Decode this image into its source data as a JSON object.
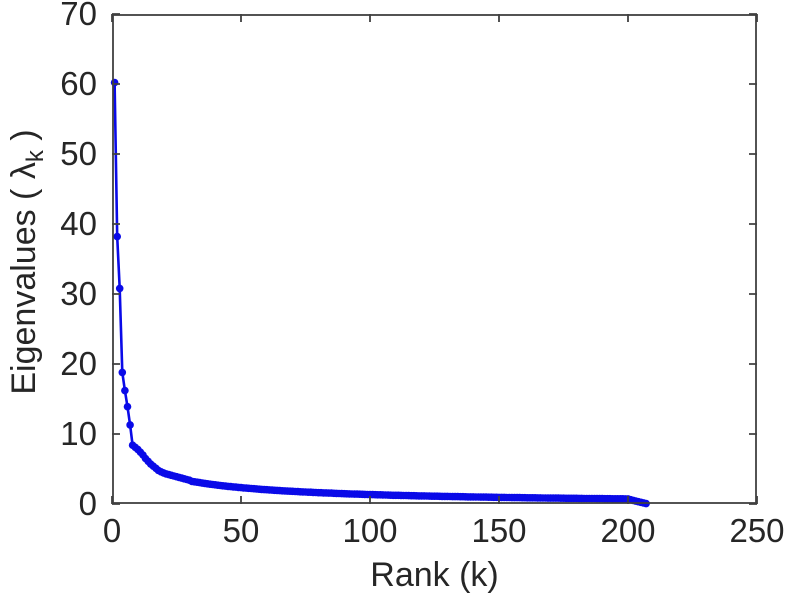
{
  "figure": {
    "title": "",
    "xlabel": "Rank (k)",
    "ylabel_prefix": "Eigenvalues ( ",
    "ylabel_lambda": "λ",
    "ylabel_sub": "k",
    "ylabel_suffix": " )",
    "background_color": "#ffffff",
    "axis_color": "#404040",
    "text_color": "#262626"
  },
  "chart_data": {
    "type": "line",
    "title": "",
    "xlabel": "Rank (k)",
    "ylabel": "Eigenvalues ( λ_k )",
    "xlim": [
      0,
      250
    ],
    "ylim": [
      0,
      70
    ],
    "xticks": [
      0,
      50,
      100,
      150,
      200,
      250
    ],
    "yticks": [
      0,
      10,
      20,
      30,
      40,
      50,
      60,
      70
    ],
    "grid": false,
    "legend": null,
    "box": true,
    "tick_direction": "in",
    "line_color": "#0a0ae8",
    "marker": "filled-circle",
    "series": [
      {
        "name": "eigenvalues",
        "x_start": 1,
        "x_step": 1,
        "values": [
          60.2,
          38.2,
          30.8,
          18.8,
          16.2,
          13.9,
          11.3,
          8.4,
          8.1,
          7.8,
          7.4,
          7.0,
          6.5,
          6.1,
          5.7,
          5.4,
          5.1,
          4.8,
          4.6,
          4.45,
          4.3,
          4.2,
          4.1,
          4.0,
          3.9,
          3.8,
          3.7,
          3.6,
          3.5,
          3.4,
          3.23,
          3.17,
          3.11,
          3.05,
          2.99,
          2.94,
          2.88,
          2.83,
          2.78,
          2.74,
          2.69,
          2.64,
          2.6,
          2.56,
          2.52,
          2.48,
          2.44,
          2.41,
          2.37,
          2.34,
          2.3,
          2.27,
          2.24,
          2.21,
          2.18,
          2.15,
          2.12,
          2.09,
          2.06,
          2.04,
          2.01,
          1.99,
          1.96,
          1.94,
          1.92,
          1.89,
          1.87,
          1.85,
          1.83,
          1.81,
          1.79,
          1.77,
          1.75,
          1.73,
          1.71,
          1.69,
          1.68,
          1.66,
          1.64,
          1.62,
          1.61,
          1.59,
          1.58,
          1.56,
          1.55,
          1.53,
          1.52,
          1.5,
          1.49,
          1.47,
          1.46,
          1.45,
          1.43,
          1.42,
          1.41,
          1.4,
          1.39,
          1.37,
          1.36,
          1.35,
          1.34,
          1.33,
          1.32,
          1.31,
          1.3,
          1.29,
          1.27,
          1.26,
          1.25,
          1.25,
          1.24,
          1.23,
          1.22,
          1.21,
          1.2,
          1.19,
          1.18,
          1.17,
          1.16,
          1.16,
          1.15,
          1.14,
          1.13,
          1.12,
          1.11,
          1.11,
          1.1,
          1.09,
          1.08,
          1.08,
          1.07,
          1.06,
          1.06,
          1.05,
          1.04,
          1.04,
          1.03,
          1.02,
          1.02,
          1.01,
          1.0,
          1.0,
          0.99,
          0.98,
          0.98,
          0.97,
          0.97,
          0.96,
          0.96,
          0.95,
          0.94,
          0.94,
          0.93,
          0.93,
          0.92,
          0.92,
          0.91,
          0.91,
          0.9,
          0.9,
          0.89,
          0.89,
          0.88,
          0.88,
          0.87,
          0.87,
          0.86,
          0.86,
          0.85,
          0.85,
          0.84,
          0.84,
          0.84,
          0.83,
          0.83,
          0.82,
          0.82,
          0.81,
          0.81,
          0.81,
          0.8,
          0.8,
          0.79,
          0.79,
          0.79,
          0.78,
          0.78,
          0.77,
          0.77,
          0.77,
          0.76,
          0.76,
          0.76,
          0.75,
          0.75,
          0.74,
          0.74,
          0.74,
          0.73,
          0.73,
          0.62,
          0.52,
          0.42,
          0.33,
          0.24,
          0.15,
          0.06
        ]
      }
    ]
  }
}
